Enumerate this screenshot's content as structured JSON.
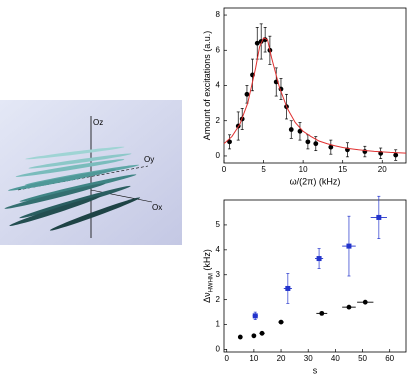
{
  "illustration": {
    "labels": [
      "Oz",
      "Oy",
      "Ox"
    ]
  },
  "chart_data": [
    {
      "type": "scatter",
      "xlabel": "ω/(2π) (kHz)",
      "ylabel": "Amount of excitations (a.u.)",
      "xlim": [
        0,
        23
      ],
      "ylim": [
        -0.4,
        8.4
      ],
      "xticks": [
        0,
        5,
        10,
        15,
        20
      ],
      "yticks": [
        0,
        2,
        4,
        6,
        8
      ],
      "series": [
        {
          "mode": "markers",
          "marker": "circle",
          "color": "#000000",
          "x": [
            0.7,
            1.8,
            2.3,
            2.9,
            3.6,
            4.2,
            4.7,
            5.2,
            5.8,
            6.6,
            7.2,
            7.9,
            8.5,
            9.6,
            10.6,
            11.6,
            13.5,
            15.6,
            17.8,
            19.8,
            21.7
          ],
          "values": [
            0.8,
            1.7,
            2.1,
            3.5,
            4.6,
            6.4,
            6.5,
            6.6,
            6.0,
            4.2,
            3.8,
            2.8,
            1.5,
            1.4,
            0.8,
            0.7,
            0.5,
            0.35,
            0.25,
            0.15,
            0.05
          ],
          "errors": [
            0.4,
            0.8,
            0.6,
            0.5,
            0.9,
            0.9,
            1.0,
            0.7,
            0.8,
            0.8,
            0.6,
            0.7,
            0.5,
            0.5,
            0.4,
            0.4,
            0.4,
            0.4,
            0.3,
            0.3,
            0.3
          ]
        },
        {
          "mode": "line",
          "color": "#e03030",
          "x": [
            0,
            1,
            2,
            3,
            4,
            4.5,
            5,
            5.5,
            6,
            7,
            8,
            9,
            10,
            11,
            12,
            13,
            14,
            15,
            16,
            17,
            18,
            19,
            20,
            21,
            22,
            23
          ],
          "values": [
            0.7,
            1.1,
            1.8,
            3.0,
            5.0,
            6.2,
            6.7,
            6.6,
            5.6,
            3.9,
            2.7,
            1.9,
            1.4,
            1.1,
            0.85,
            0.7,
            0.58,
            0.48,
            0.41,
            0.35,
            0.3,
            0.26,
            0.23,
            0.2,
            0.18,
            0.16
          ]
        }
      ]
    },
    {
      "type": "scatter",
      "xlabel": "s",
      "ylabel": "Δν",
      "ylabel_sub": "HWHM",
      "ylabel_unit": " (kHz)",
      "xlim": [
        -1,
        66
      ],
      "ylim": [
        -0.1,
        6
      ],
      "xticks": [
        0,
        10,
        20,
        30,
        40,
        50,
        60
      ],
      "yticks": [
        0,
        1,
        2,
        3,
        4,
        5
      ],
      "series": [
        {
          "mode": "markers",
          "marker": "square",
          "color": "#2233cc",
          "x": [
            10.5,
            22.5,
            34,
            45,
            56
          ],
          "values": [
            1.35,
            2.45,
            3.65,
            4.15,
            5.3
          ],
          "errors": [
            0.15,
            0.6,
            0.4,
            1.2,
            0.85
          ],
          "xerr": [
            1,
            1.5,
            1.5,
            2.5,
            3
          ]
        },
        {
          "mode": "markers",
          "marker": "circle",
          "color": "#000000",
          "x": [
            5,
            10,
            13,
            20,
            35,
            45,
            51
          ],
          "values": [
            0.5,
            0.55,
            0.65,
            1.1,
            1.45,
            1.7,
            1.9
          ],
          "xerr": [
            0,
            0,
            1,
            1,
            2,
            2.5,
            3
          ]
        }
      ]
    }
  ]
}
